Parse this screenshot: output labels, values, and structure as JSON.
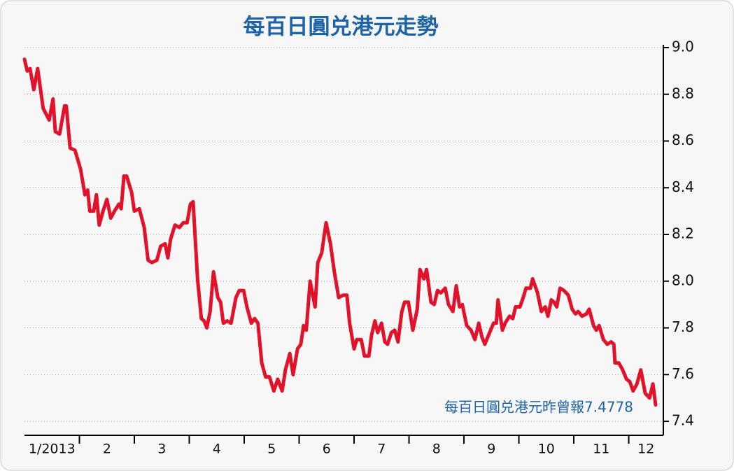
{
  "chart_data": {
    "type": "line",
    "title": "每百日圓兑港元走勢",
    "annotation": "每百日圓兑港元昨曾報7.4778",
    "x": [
      1.0,
      1.05,
      1.1,
      1.17,
      1.24,
      1.34,
      1.45,
      1.52,
      1.56,
      1.64,
      1.73,
      1.76,
      1.83,
      1.92,
      2.02,
      2.1,
      2.15,
      2.19,
      2.26,
      2.31,
      2.36,
      2.43,
      2.5,
      2.57,
      2.64,
      2.72,
      2.76,
      2.81,
      2.86,
      2.95,
      3.0,
      3.09,
      3.18,
      3.25,
      3.32,
      3.41,
      3.48,
      3.56,
      3.61,
      3.66,
      3.74,
      3.82,
      3.89,
      3.96,
      4.02,
      4.07,
      4.15,
      4.22,
      4.27,
      4.32,
      4.38,
      4.44,
      4.52,
      4.57,
      4.62,
      4.69,
      4.76,
      4.85,
      4.91,
      4.99,
      5.05,
      5.13,
      5.19,
      5.25,
      5.32,
      5.39,
      5.46,
      5.54,
      5.61,
      5.69,
      5.75,
      5.83,
      5.89,
      5.97,
      6.03,
      6.08,
      6.13,
      6.2,
      6.29,
      6.34,
      6.41,
      6.49,
      6.57,
      6.64,
      6.72,
      6.8,
      6.87,
      6.92,
      7.0,
      7.05,
      7.13,
      7.19,
      7.27,
      7.32,
      7.38,
      7.43,
      7.5,
      7.56,
      7.61,
      7.68,
      7.74,
      7.8,
      7.87,
      7.92,
      7.99,
      8.07,
      8.15,
      8.2,
      8.27,
      8.32,
      8.4,
      8.46,
      8.52,
      8.58,
      8.66,
      8.72,
      8.8,
      8.86,
      8.92,
      8.97,
      9.05,
      9.13,
      9.2,
      9.27,
      9.33,
      9.38,
      9.45,
      9.54,
      9.59,
      9.62,
      9.7,
      9.75,
      9.83,
      9.89,
      9.94,
      10.02,
      10.08,
      10.13,
      10.21,
      10.25,
      10.34,
      10.41,
      10.48,
      10.53,
      10.59,
      10.64,
      10.69,
      10.75,
      10.82,
      10.9,
      10.97,
      11.03,
      11.08,
      11.15,
      11.23,
      11.28,
      11.36,
      11.41,
      11.46,
      11.54,
      11.61,
      11.68,
      11.73,
      11.75,
      11.82,
      11.89,
      11.96,
      12.02,
      12.08,
      12.15,
      12.22,
      12.3,
      12.38,
      12.44,
      12.49
    ],
    "series": [
      {
        "color": "#e2122b",
        "values": [
          8.95,
          8.9,
          8.91,
          8.82,
          8.91,
          8.74,
          8.69,
          8.78,
          8.64,
          8.63,
          8.75,
          8.75,
          8.57,
          8.56,
          8.48,
          8.37,
          8.39,
          8.3,
          8.3,
          8.37,
          8.24,
          8.3,
          8.35,
          8.27,
          8.3,
          8.33,
          8.31,
          8.45,
          8.45,
          8.38,
          8.3,
          8.31,
          8.23,
          8.09,
          8.08,
          8.09,
          8.15,
          8.16,
          8.1,
          8.18,
          8.24,
          8.23,
          8.25,
          8.25,
          8.33,
          8.34,
          8.01,
          7.84,
          7.83,
          7.8,
          7.87,
          8.04,
          7.93,
          7.91,
          7.82,
          7.83,
          7.82,
          7.93,
          7.96,
          7.96,
          7.89,
          7.82,
          7.84,
          7.82,
          7.65,
          7.59,
          7.59,
          7.53,
          7.58,
          7.53,
          7.62,
          7.69,
          7.6,
          7.71,
          7.73,
          7.81,
          7.79,
          8.0,
          7.89,
          8.08,
          8.12,
          8.25,
          8.16,
          8.04,
          7.93,
          7.94,
          7.94,
          7.82,
          7.71,
          7.75,
          7.75,
          7.68,
          7.68,
          7.77,
          7.83,
          7.78,
          7.82,
          7.74,
          7.73,
          7.78,
          7.79,
          7.74,
          7.87,
          7.91,
          7.91,
          7.79,
          7.88,
          8.05,
          8.01,
          8.05,
          7.91,
          7.9,
          7.96,
          7.95,
          7.97,
          7.9,
          7.87,
          7.98,
          7.89,
          7.9,
          7.81,
          7.79,
          7.75,
          7.82,
          7.76,
          7.73,
          7.77,
          7.82,
          7.82,
          7.92,
          7.79,
          7.82,
          7.85,
          7.84,
          7.89,
          7.89,
          7.93,
          7.97,
          7.97,
          8.01,
          7.95,
          7.87,
          7.89,
          7.85,
          7.92,
          7.91,
          7.89,
          7.97,
          7.96,
          7.94,
          7.88,
          7.86,
          7.87,
          7.85,
          7.86,
          7.88,
          7.81,
          7.79,
          7.81,
          7.75,
          7.73,
          7.74,
          7.73,
          7.65,
          7.65,
          7.62,
          7.58,
          7.57,
          7.53,
          7.56,
          7.62,
          7.52,
          7.5,
          7.56,
          7.47
        ]
      }
    ],
    "xlim": [
      1,
      12.63
    ],
    "xticks": [
      {
        "value": 1,
        "label": "1/2013"
      },
      2,
      3,
      4,
      5,
      6,
      7,
      8,
      9,
      10,
      11,
      12
    ],
    "ylim": [
      7.4,
      9.0
    ],
    "yticks": [
      7.4,
      7.6,
      7.8,
      {
        "value": 8,
        "label": "8.0"
      },
      8.2,
      8.4,
      8.6,
      8.8,
      {
        "value": 9,
        "label": "9.0"
      }
    ],
    "grid": true
  }
}
